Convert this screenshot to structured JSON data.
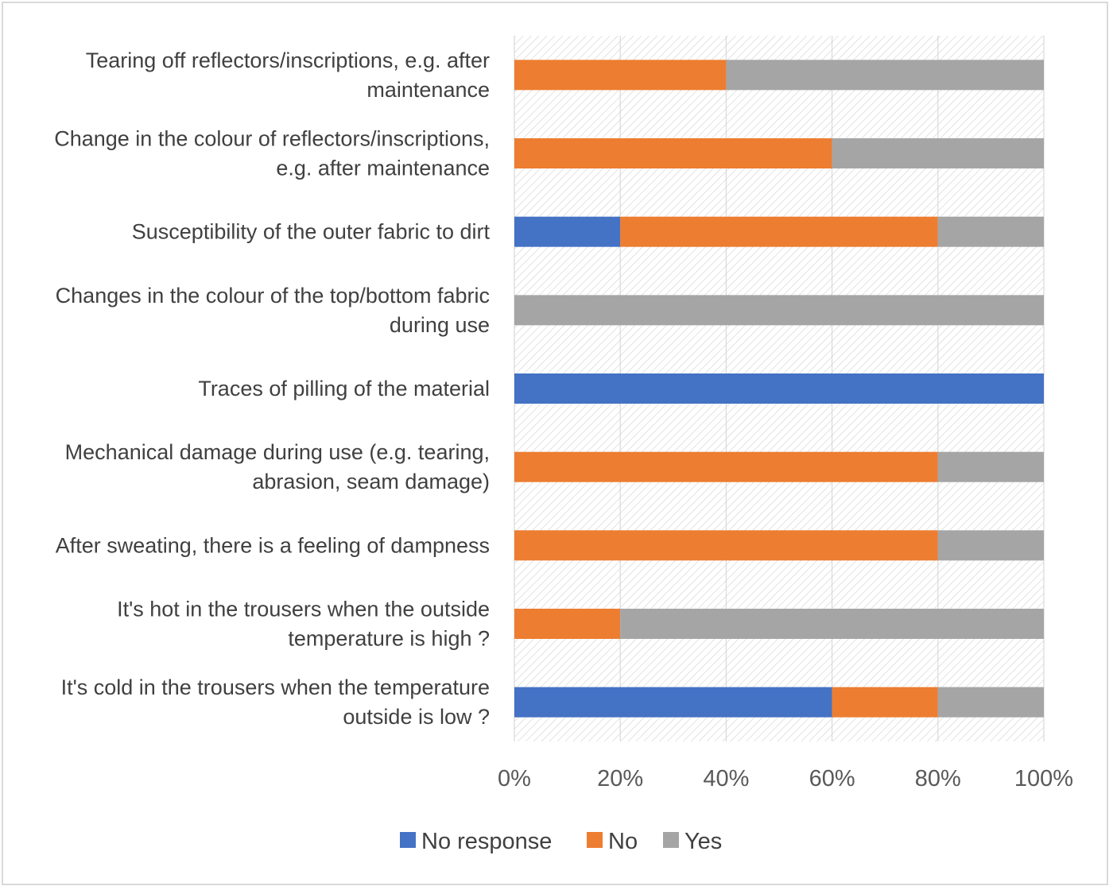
{
  "chart_data": {
    "type": "bar",
    "orientation": "horizontal",
    "stacked": "percent",
    "categories": [
      [
        "Tearing off reflectors/inscriptions, e.g. after",
        "maintenance"
      ],
      [
        "Change in the colour of reflectors/inscriptions,",
        "e.g. after maintenance"
      ],
      [
        "Susceptibility of the outer fabric to dirt"
      ],
      [
        "Changes in the colour of the top/bottom fabric",
        "during use"
      ],
      [
        "Traces of pilling of the material"
      ],
      [
        "Mechanical damage during use (e.g. tearing,",
        "abrasion, seam damage)"
      ],
      [
        "After sweating, there is a feeling of dampness"
      ],
      [
        "It's hot in the trousers when the outside",
        "temperature is high ?"
      ],
      [
        "It's cold in the trousers when the temperature",
        "outside is low ?"
      ]
    ],
    "series": [
      {
        "name": "No response",
        "color": "#4472c4",
        "values": [
          0,
          0,
          20,
          0,
          100,
          0,
          0,
          0,
          60
        ]
      },
      {
        "name": "No",
        "color": "#ed7d31",
        "values": [
          40,
          60,
          60,
          0,
          0,
          80,
          80,
          20,
          20
        ]
      },
      {
        "name": "Yes",
        "color": "#a5a5a5",
        "values": [
          60,
          40,
          20,
          100,
          0,
          20,
          20,
          80,
          20
        ]
      }
    ],
    "xlim": [
      0,
      100
    ],
    "xticks": [
      "0%",
      "20%",
      "40%",
      "60%",
      "80%",
      "100%"
    ],
    "grid": true,
    "legend_position": "bottom"
  }
}
